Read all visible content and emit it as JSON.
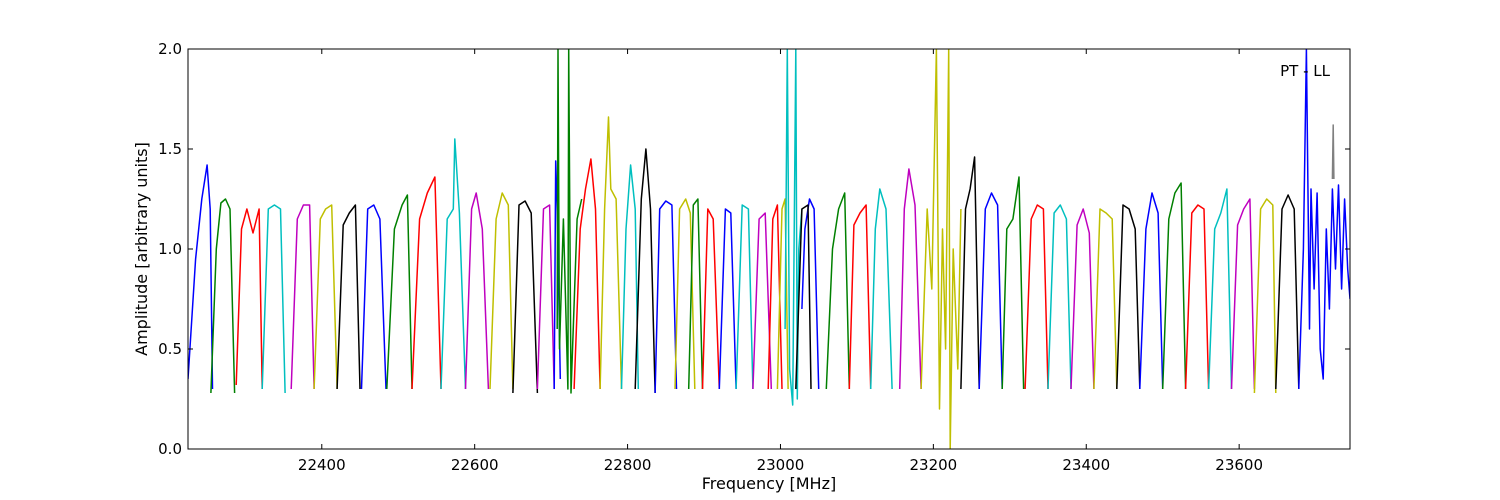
{
  "chart_data": {
    "type": "line",
    "xlabel": "Frequency [MHz]",
    "ylabel": "Amplitude [arbitrary units]",
    "xlim": [
      22225,
      23745
    ],
    "ylim": [
      0.0,
      2.0
    ],
    "xticks": [
      22400,
      22600,
      22800,
      23000,
      23200,
      23400,
      23600
    ],
    "yticks": [
      0.0,
      0.5,
      1.0,
      1.5,
      2.0
    ],
    "xtick_labels": [
      "22400",
      "22600",
      "22800",
      "23000",
      "23200",
      "23400",
      "23600"
    ],
    "ytick_labels": [
      "0.0",
      "0.5",
      "1.0",
      "1.5",
      "2.0"
    ],
    "annotation": "PT - LL",
    "grid": false,
    "color_cycle": [
      "#0000ff",
      "#008000",
      "#ff0000",
      "#00bfbf",
      "#bf00bf",
      "#bfbf00",
      "#000000"
    ],
    "series": [
      {
        "color": "#0000ff",
        "x": [
          22225,
          22235,
          22243,
          22250,
          22254,
          22257
        ],
        "y": [
          0.35,
          0.95,
          1.25,
          1.42,
          1.2,
          0.3
        ]
      },
      {
        "color": "#008000",
        "x": [
          22255,
          22262,
          22268,
          22274,
          22280,
          22286
        ],
        "y": [
          0.28,
          1.0,
          1.23,
          1.25,
          1.2,
          0.28
        ]
      },
      {
        "color": "#ff0000",
        "x": [
          22288,
          22295,
          22302,
          22310,
          22318,
          22322
        ],
        "y": [
          0.32,
          1.1,
          1.2,
          1.08,
          1.2,
          0.3
        ]
      },
      {
        "color": "#00bfbf",
        "x": [
          22322,
          22330,
          22338,
          22346,
          22352
        ],
        "y": [
          0.3,
          1.2,
          1.22,
          1.2,
          0.28
        ]
      },
      {
        "color": "#bf00bf",
        "x": [
          22360,
          22368,
          22376,
          22384,
          22390
        ],
        "y": [
          0.3,
          1.15,
          1.22,
          1.22,
          0.3
        ]
      },
      {
        "color": "#bfbf00",
        "x": [
          22390,
          22398,
          22405,
          22413,
          22420
        ],
        "y": [
          0.3,
          1.15,
          1.2,
          1.22,
          0.3
        ]
      },
      {
        "color": "#000000",
        "x": [
          22420,
          22428,
          22436,
          22444,
          22450
        ],
        "y": [
          0.3,
          1.12,
          1.18,
          1.22,
          0.3
        ]
      },
      {
        "color": "#0000ff",
        "x": [
          22452,
          22460,
          22468,
          22476,
          22484
        ],
        "y": [
          0.3,
          1.2,
          1.22,
          1.15,
          0.3
        ]
      },
      {
        "color": "#008000",
        "x": [
          22485,
          22495,
          22505,
          22512,
          22518
        ],
        "y": [
          0.3,
          1.1,
          1.22,
          1.27,
          0.3
        ]
      },
      {
        "color": "#ff0000",
        "x": [
          22518,
          22528,
          22538,
          22548,
          22556
        ],
        "y": [
          0.3,
          1.15,
          1.28,
          1.36,
          0.3
        ]
      },
      {
        "color": "#00bfbf",
        "x": [
          22556,
          22564,
          22572,
          22574,
          22580,
          22588
        ],
        "y": [
          0.3,
          1.15,
          1.2,
          1.55,
          1.18,
          0.3
        ]
      },
      {
        "color": "#bf00bf",
        "x": [
          22588,
          22596,
          22602,
          22610,
          22618
        ],
        "y": [
          0.3,
          1.2,
          1.28,
          1.1,
          0.3
        ]
      },
      {
        "color": "#bfbf00",
        "x": [
          22620,
          22628,
          22636,
          22644,
          22650
        ],
        "y": [
          0.3,
          1.15,
          1.28,
          1.22,
          0.3
        ]
      },
      {
        "color": "#000000",
        "x": [
          22650,
          22658,
          22666,
          22674,
          22682
        ],
        "y": [
          0.28,
          1.22,
          1.24,
          1.18,
          0.28
        ]
      },
      {
        "color": "#bf00bf",
        "x": [
          22682,
          22690,
          22698,
          22704
        ],
        "y": [
          0.3,
          1.2,
          1.22,
          0.3
        ]
      },
      {
        "color": "#0000ff",
        "x": [
          22704,
          22706,
          22708,
          22712
        ],
        "y": [
          0.3,
          1.44,
          1.2,
          0.35
        ]
      },
      {
        "color": "#008000",
        "x": [
          22708,
          22709,
          22711,
          22716,
          22722,
          22723,
          22726,
          22734,
          22740
        ],
        "y": [
          0.6,
          2.0,
          0.5,
          1.15,
          0.3,
          2.0,
          0.28,
          1.15,
          1.25
        ]
      },
      {
        "color": "#ff0000",
        "x": [
          22730,
          22738,
          22745,
          22752,
          22758,
          22764
        ],
        "y": [
          0.3,
          1.1,
          1.3,
          1.45,
          1.2,
          0.3
        ]
      },
      {
        "color": "#bfbf00",
        "x": [
          22764,
          22770,
          22775,
          22778,
          22785,
          22792
        ],
        "y": [
          0.3,
          1.2,
          1.66,
          1.3,
          1.25,
          0.3
        ]
      },
      {
        "color": "#00bfbf",
        "x": [
          22792,
          22798,
          22804,
          22810,
          22814
        ],
        "y": [
          0.3,
          1.1,
          1.42,
          1.2,
          0.3
        ]
      },
      {
        "color": "#000000",
        "x": [
          22810,
          22818,
          22824,
          22830,
          22836
        ],
        "y": [
          0.3,
          1.25,
          1.5,
          1.2,
          0.28
        ]
      },
      {
        "color": "#0000ff",
        "x": [
          22836,
          22842,
          22850,
          22858,
          22864
        ],
        "y": [
          0.28,
          1.2,
          1.24,
          1.22,
          0.3
        ]
      },
      {
        "color": "#bfbf00",
        "x": [
          22862,
          22868,
          22876,
          22882,
          22888
        ],
        "y": [
          0.3,
          1.2,
          1.25,
          1.18,
          0.3
        ]
      },
      {
        "color": "#008000",
        "x": [
          22880,
          22886,
          22892,
          22898
        ],
        "y": [
          0.3,
          1.22,
          1.25,
          0.3
        ]
      },
      {
        "color": "#ff0000",
        "x": [
          22898,
          22905,
          22912,
          22920
        ],
        "y": [
          0.3,
          1.2,
          1.15,
          0.3
        ]
      },
      {
        "color": "#0000ff",
        "x": [
          22920,
          22928,
          22935,
          22942
        ],
        "y": [
          0.3,
          1.2,
          1.18,
          0.3
        ]
      },
      {
        "color": "#00bfbf",
        "x": [
          22942,
          22950,
          22958,
          22964
        ],
        "y": [
          0.3,
          1.22,
          1.2,
          0.3
        ]
      },
      {
        "color": "#bf00bf",
        "x": [
          22964,
          22972,
          22980,
          22988
        ],
        "y": [
          0.3,
          1.15,
          1.18,
          0.3
        ]
      },
      {
        "color": "#ff0000",
        "x": [
          22984,
          22990,
          22996,
          23002
        ],
        "y": [
          0.3,
          1.15,
          1.22,
          0.3
        ]
      },
      {
        "color": "#bfbf00",
        "x": [
          22996,
          23002,
          23006,
          23010
        ],
        "y": [
          0.3,
          1.2,
          1.25,
          0.3
        ]
      },
      {
        "color": "#00bfbf",
        "x": [
          23006,
          23009,
          23012,
          23016,
          23020,
          23022,
          23024,
          23028
        ],
        "y": [
          0.6,
          2.0,
          0.4,
          0.22,
          2.0,
          0.25,
          1.0,
          1.2
        ]
      },
      {
        "color": "#0000ff",
        "x": [
          23028,
          23032,
          23038,
          23044,
          23050
        ],
        "y": [
          0.7,
          1.1,
          1.25,
          1.2,
          0.3
        ]
      },
      {
        "color": "#000000",
        "x": [
          23020,
          23028,
          23036,
          23040
        ],
        "y": [
          0.3,
          1.2,
          1.22,
          0.3
        ]
      },
      {
        "color": "#008000",
        "x": [
          23060,
          23068,
          23076,
          23084,
          23090
        ],
        "y": [
          0.3,
          1.0,
          1.2,
          1.28,
          0.3
        ]
      },
      {
        "color": "#ff0000",
        "x": [
          23090,
          23096,
          23104,
          23112,
          23118
        ],
        "y": [
          0.3,
          1.12,
          1.18,
          1.22,
          0.3
        ]
      },
      {
        "color": "#00bfbf",
        "x": [
          23118,
          23124,
          23130,
          23138,
          23146
        ],
        "y": [
          0.3,
          1.1,
          1.3,
          1.2,
          0.3
        ]
      },
      {
        "color": "#bf00bf",
        "x": [
          23156,
          23162,
          23168,
          23176,
          23184
        ],
        "y": [
          0.3,
          1.2,
          1.4,
          1.22,
          0.3
        ]
      },
      {
        "color": "#bfbf00",
        "x": [
          23184,
          23192,
          23198,
          23204,
          23208,
          23212,
          23216,
          23220,
          23222,
          23226,
          23232,
          23236
        ],
        "y": [
          0.3,
          1.2,
          0.8,
          2.0,
          0.2,
          1.1,
          0.5,
          2.0,
          0.0,
          1.0,
          0.4,
          1.2
        ]
      },
      {
        "color": "#000000",
        "x": [
          23236,
          23242,
          23248,
          23254,
          23260
        ],
        "y": [
          0.3,
          1.2,
          1.3,
          1.46,
          0.3
        ]
      },
      {
        "color": "#0000ff",
        "x": [
          23260,
          23268,
          23276,
          23284,
          23290
        ],
        "y": [
          0.3,
          1.2,
          1.28,
          1.22,
          0.3
        ]
      },
      {
        "color": "#008000",
        "x": [
          23290,
          23296,
          23304,
          23312,
          23318
        ],
        "y": [
          0.3,
          1.1,
          1.15,
          1.36,
          0.3
        ]
      },
      {
        "color": "#ff0000",
        "x": [
          23320,
          23328,
          23336,
          23344,
          23350
        ],
        "y": [
          0.3,
          1.15,
          1.22,
          1.2,
          0.3
        ]
      },
      {
        "color": "#00bfbf",
        "x": [
          23350,
          23358,
          23366,
          23374,
          23380
        ],
        "y": [
          0.3,
          1.18,
          1.22,
          1.15,
          0.3
        ]
      },
      {
        "color": "#bf00bf",
        "x": [
          23380,
          23388,
          23396,
          23404,
          23410
        ],
        "y": [
          0.3,
          1.12,
          1.2,
          1.08,
          0.3
        ]
      },
      {
        "color": "#bfbf00",
        "x": [
          23410,
          23418,
          23426,
          23434,
          23440
        ],
        "y": [
          0.3,
          1.2,
          1.18,
          1.15,
          0.3
        ]
      },
      {
        "color": "#000000",
        "x": [
          23440,
          23448,
          23456,
          23464,
          23470
        ],
        "y": [
          0.3,
          1.22,
          1.2,
          1.1,
          0.3
        ]
      },
      {
        "color": "#0000ff",
        "x": [
          23470,
          23478,
          23486,
          23494,
          23500
        ],
        "y": [
          0.3,
          1.1,
          1.28,
          1.18,
          0.3
        ]
      },
      {
        "color": "#008000",
        "x": [
          23500,
          23508,
          23516,
          23524,
          23530
        ],
        "y": [
          0.3,
          1.15,
          1.28,
          1.33,
          0.3
        ]
      },
      {
        "color": "#ff0000",
        "x": [
          23530,
          23538,
          23546,
          23554,
          23560
        ],
        "y": [
          0.3,
          1.18,
          1.22,
          1.2,
          0.3
        ]
      },
      {
        "color": "#00bfbf",
        "x": [
          23560,
          23568,
          23576,
          23584,
          23590
        ],
        "y": [
          0.3,
          1.1,
          1.18,
          1.3,
          0.3
        ]
      },
      {
        "color": "#bf00bf",
        "x": [
          23590,
          23598,
          23606,
          23614,
          23620
        ],
        "y": [
          0.3,
          1.12,
          1.2,
          1.25,
          0.3
        ]
      },
      {
        "color": "#bfbf00",
        "x": [
          23620,
          23628,
          23636,
          23644,
          23648
        ],
        "y": [
          0.28,
          1.2,
          1.25,
          1.22,
          0.28
        ]
      },
      {
        "color": "#000000",
        "x": [
          23648,
          23656,
          23664,
          23672,
          23678
        ],
        "y": [
          0.3,
          1.2,
          1.27,
          1.2,
          0.3
        ]
      },
      {
        "color": "#0000ff",
        "x": [
          23678,
          23684,
          23688,
          23692,
          23694,
          23698,
          23702,
          23706,
          23710,
          23714,
          23718,
          23722,
          23726,
          23730,
          23734,
          23738,
          23742,
          23745
        ],
        "y": [
          0.3,
          1.0,
          2.0,
          0.6,
          1.3,
          0.8,
          1.28,
          0.5,
          0.35,
          1.1,
          0.7,
          1.3,
          0.9,
          1.32,
          0.8,
          1.25,
          0.9,
          0.75
        ]
      },
      {
        "color": "#808080",
        "x": [
          23722,
          23723,
          23724
        ],
        "y": [
          1.35,
          1.62,
          1.35
        ]
      }
    ]
  }
}
